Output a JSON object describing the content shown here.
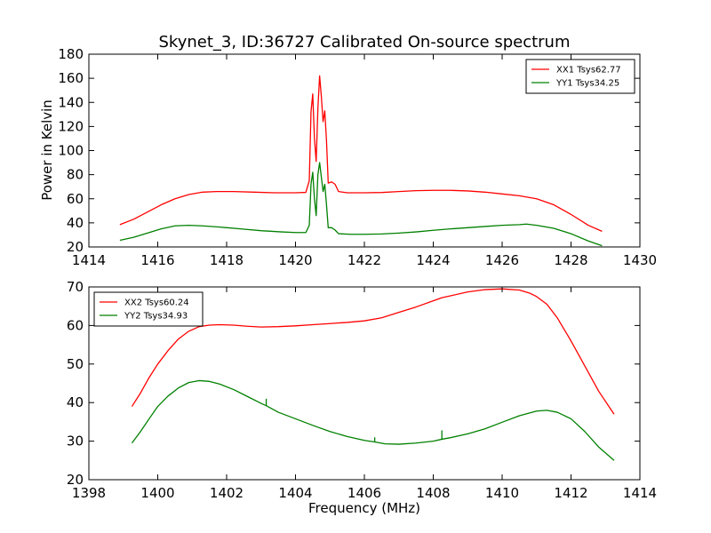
{
  "figure": {
    "title": "Skynet_3, ID:36727 Calibrated On-source spectrum",
    "xlabel": "Frequency (MHz)",
    "ylabel": "Power in Kelvin"
  },
  "colors": {
    "xx": "#ff0000",
    "yy": "#008000",
    "axis": "#000000",
    "background": "#ffffff"
  },
  "chart_data": [
    {
      "type": "line",
      "xlim": [
        1414,
        1430
      ],
      "ylim": [
        20,
        180
      ],
      "xticks": [
        1414,
        1416,
        1418,
        1420,
        1422,
        1424,
        1426,
        1428,
        1430
      ],
      "yticks": [
        20,
        40,
        60,
        80,
        100,
        120,
        140,
        160,
        180
      ],
      "grid": false,
      "legend_position": "top-right",
      "series": [
        {
          "name": "XX1 Tsys62.77",
          "color": "#ff0000",
          "points": [
            [
              1414.9,
              38.5
            ],
            [
              1415.3,
              43
            ],
            [
              1415.7,
              49
            ],
            [
              1416.1,
              55
            ],
            [
              1416.5,
              60
            ],
            [
              1416.9,
              63.5
            ],
            [
              1417.3,
              65.5
            ],
            [
              1417.7,
              66
            ],
            [
              1418.2,
              66
            ],
            [
              1418.8,
              65.5
            ],
            [
              1419.4,
              65
            ],
            [
              1420.0,
              65
            ],
            [
              1420.3,
              65.3
            ],
            [
              1420.4,
              75
            ],
            [
              1420.45,
              132
            ],
            [
              1420.5,
              147
            ],
            [
              1420.55,
              110
            ],
            [
              1420.6,
              91
            ],
            [
              1420.65,
              135
            ],
            [
              1420.7,
              162
            ],
            [
              1420.75,
              145
            ],
            [
              1420.8,
              124
            ],
            [
              1420.85,
              133
            ],
            [
              1420.9,
              108
            ],
            [
              1420.95,
              73
            ],
            [
              1421.05,
              74
            ],
            [
              1421.15,
              72
            ],
            [
              1421.25,
              66
            ],
            [
              1421.5,
              65
            ],
            [
              1422.0,
              65
            ],
            [
              1422.5,
              65.2
            ],
            [
              1423.0,
              66
            ],
            [
              1423.5,
              66.7
            ],
            [
              1424.0,
              67
            ],
            [
              1424.5,
              67
            ],
            [
              1425.0,
              66.5
            ],
            [
              1425.5,
              65.5
            ],
            [
              1426.0,
              64
            ],
            [
              1426.5,
              62.5
            ],
            [
              1427.0,
              60
            ],
            [
              1427.5,
              55
            ],
            [
              1428.0,
              47
            ],
            [
              1428.5,
              38
            ],
            [
              1428.9,
              33
            ]
          ]
        },
        {
          "name": "YY1 Tsys34.25",
          "color": "#008000",
          "points": [
            [
              1414.9,
              25.5
            ],
            [
              1415.3,
              28
            ],
            [
              1415.7,
              31.5
            ],
            [
              1416.1,
              35
            ],
            [
              1416.5,
              37.5
            ],
            [
              1416.9,
              38
            ],
            [
              1417.3,
              37.5
            ],
            [
              1417.8,
              36.5
            ],
            [
              1418.4,
              35
            ],
            [
              1419.0,
              33.5
            ],
            [
              1419.6,
              32.5
            ],
            [
              1420.0,
              32
            ],
            [
              1420.3,
              32
            ],
            [
              1420.4,
              38
            ],
            [
              1420.45,
              72
            ],
            [
              1420.5,
              82
            ],
            [
              1420.55,
              60
            ],
            [
              1420.6,
              46
            ],
            [
              1420.65,
              80
            ],
            [
              1420.7,
              90
            ],
            [
              1420.75,
              78
            ],
            [
              1420.8,
              66
            ],
            [
              1420.85,
              72
            ],
            [
              1420.9,
              55
            ],
            [
              1420.95,
              36
            ],
            [
              1421.05,
              36
            ],
            [
              1421.15,
              34
            ],
            [
              1421.25,
              31
            ],
            [
              1421.6,
              30.5
            ],
            [
              1422.0,
              30.5
            ],
            [
              1422.5,
              30.8
            ],
            [
              1423.0,
              31.5
            ],
            [
              1423.5,
              32.5
            ],
            [
              1424.0,
              33.8
            ],
            [
              1424.5,
              35
            ],
            [
              1425.0,
              36
            ],
            [
              1425.5,
              37
            ],
            [
              1426.0,
              38
            ],
            [
              1426.5,
              38.5
            ],
            [
              1426.7,
              39
            ],
            [
              1427.0,
              38
            ],
            [
              1427.5,
              35.5
            ],
            [
              1428.0,
              31
            ],
            [
              1428.5,
              25
            ],
            [
              1428.9,
              21
            ]
          ]
        }
      ]
    },
    {
      "type": "line",
      "xlim": [
        1398,
        1414
      ],
      "ylim": [
        20,
        70
      ],
      "xticks": [
        1398,
        1400,
        1402,
        1404,
        1406,
        1408,
        1410,
        1412,
        1414
      ],
      "yticks": [
        20,
        30,
        40,
        50,
        60,
        70
      ],
      "grid": false,
      "legend_position": "top-left",
      "series": [
        {
          "name": "XX2 Tsys60.24",
          "color": "#ff0000",
          "points": [
            [
              1399.25,
              39
            ],
            [
              1399.5,
              42.5
            ],
            [
              1399.75,
              46.5
            ],
            [
              1400.0,
              50
            ],
            [
              1400.3,
              53.5
            ],
            [
              1400.6,
              56.5
            ],
            [
              1400.9,
              58.5
            ],
            [
              1401.2,
              59.7
            ],
            [
              1401.5,
              60.1
            ],
            [
              1401.8,
              60.2
            ],
            [
              1402.2,
              60.1
            ],
            [
              1402.6,
              59.8
            ],
            [
              1403.0,
              59.6
            ],
            [
              1403.5,
              59.7
            ],
            [
              1404.0,
              59.9
            ],
            [
              1404.5,
              60.2
            ],
            [
              1405.0,
              60.5
            ],
            [
              1405.5,
              60.8
            ],
            [
              1406.0,
              61.2
            ],
            [
              1406.5,
              62
            ],
            [
              1407.0,
              63.4
            ],
            [
              1407.5,
              64.8
            ],
            [
              1408.0,
              66.4
            ],
            [
              1408.25,
              67.2
            ],
            [
              1408.5,
              67.7
            ],
            [
              1409.0,
              68.7
            ],
            [
              1409.5,
              69.3
            ],
            [
              1410.0,
              69.5
            ],
            [
              1410.5,
              69.2
            ],
            [
              1410.8,
              68.4
            ],
            [
              1411.0,
              67.5
            ],
            [
              1411.3,
              65.5
            ],
            [
              1411.6,
              62
            ],
            [
              1412.0,
              56
            ],
            [
              1412.4,
              49.5
            ],
            [
              1412.8,
              43
            ],
            [
              1413.25,
              37
            ]
          ]
        },
        {
          "name": "YY2 Tsys34.93",
          "color": "#008000",
          "points": [
            [
              1399.25,
              29.5
            ],
            [
              1399.5,
              32.5
            ],
            [
              1399.75,
              35.8
            ],
            [
              1400.0,
              39
            ],
            [
              1400.3,
              41.7
            ],
            [
              1400.6,
              43.8
            ],
            [
              1400.9,
              45.2
            ],
            [
              1401.2,
              45.7
            ],
            [
              1401.5,
              45.5
            ],
            [
              1401.8,
              44.8
            ],
            [
              1402.2,
              43.4
            ],
            [
              1402.6,
              41.6
            ],
            [
              1403.0,
              39.8
            ],
            [
              1403.15,
              39.2
            ],
            [
              1403.5,
              37.5
            ],
            [
              1404.0,
              35.8
            ],
            [
              1404.5,
              34.1
            ],
            [
              1405.0,
              32.5
            ],
            [
              1405.5,
              31.2
            ],
            [
              1406.0,
              30.2
            ],
            [
              1406.3,
              29.8
            ],
            [
              1406.6,
              29.3
            ],
            [
              1407.0,
              29.2
            ],
            [
              1407.5,
              29.5
            ],
            [
              1408.0,
              30
            ],
            [
              1408.25,
              30.5
            ],
            [
              1408.5,
              30.9
            ],
            [
              1409.0,
              31.9
            ],
            [
              1409.5,
              33.2
            ],
            [
              1410.0,
              34.9
            ],
            [
              1410.5,
              36.6
            ],
            [
              1411.0,
              37.8
            ],
            [
              1411.3,
              38
            ],
            [
              1411.6,
              37.5
            ],
            [
              1412.0,
              35.8
            ],
            [
              1412.4,
              32.5
            ],
            [
              1412.8,
              28.5
            ],
            [
              1413.25,
              25
            ]
          ],
          "spikes": [
            [
              1403.15,
              39.2,
              41.0
            ],
            [
              1406.3,
              29.8,
              31.0
            ],
            [
              1408.25,
              30.5,
              32.8
            ]
          ]
        }
      ]
    }
  ]
}
